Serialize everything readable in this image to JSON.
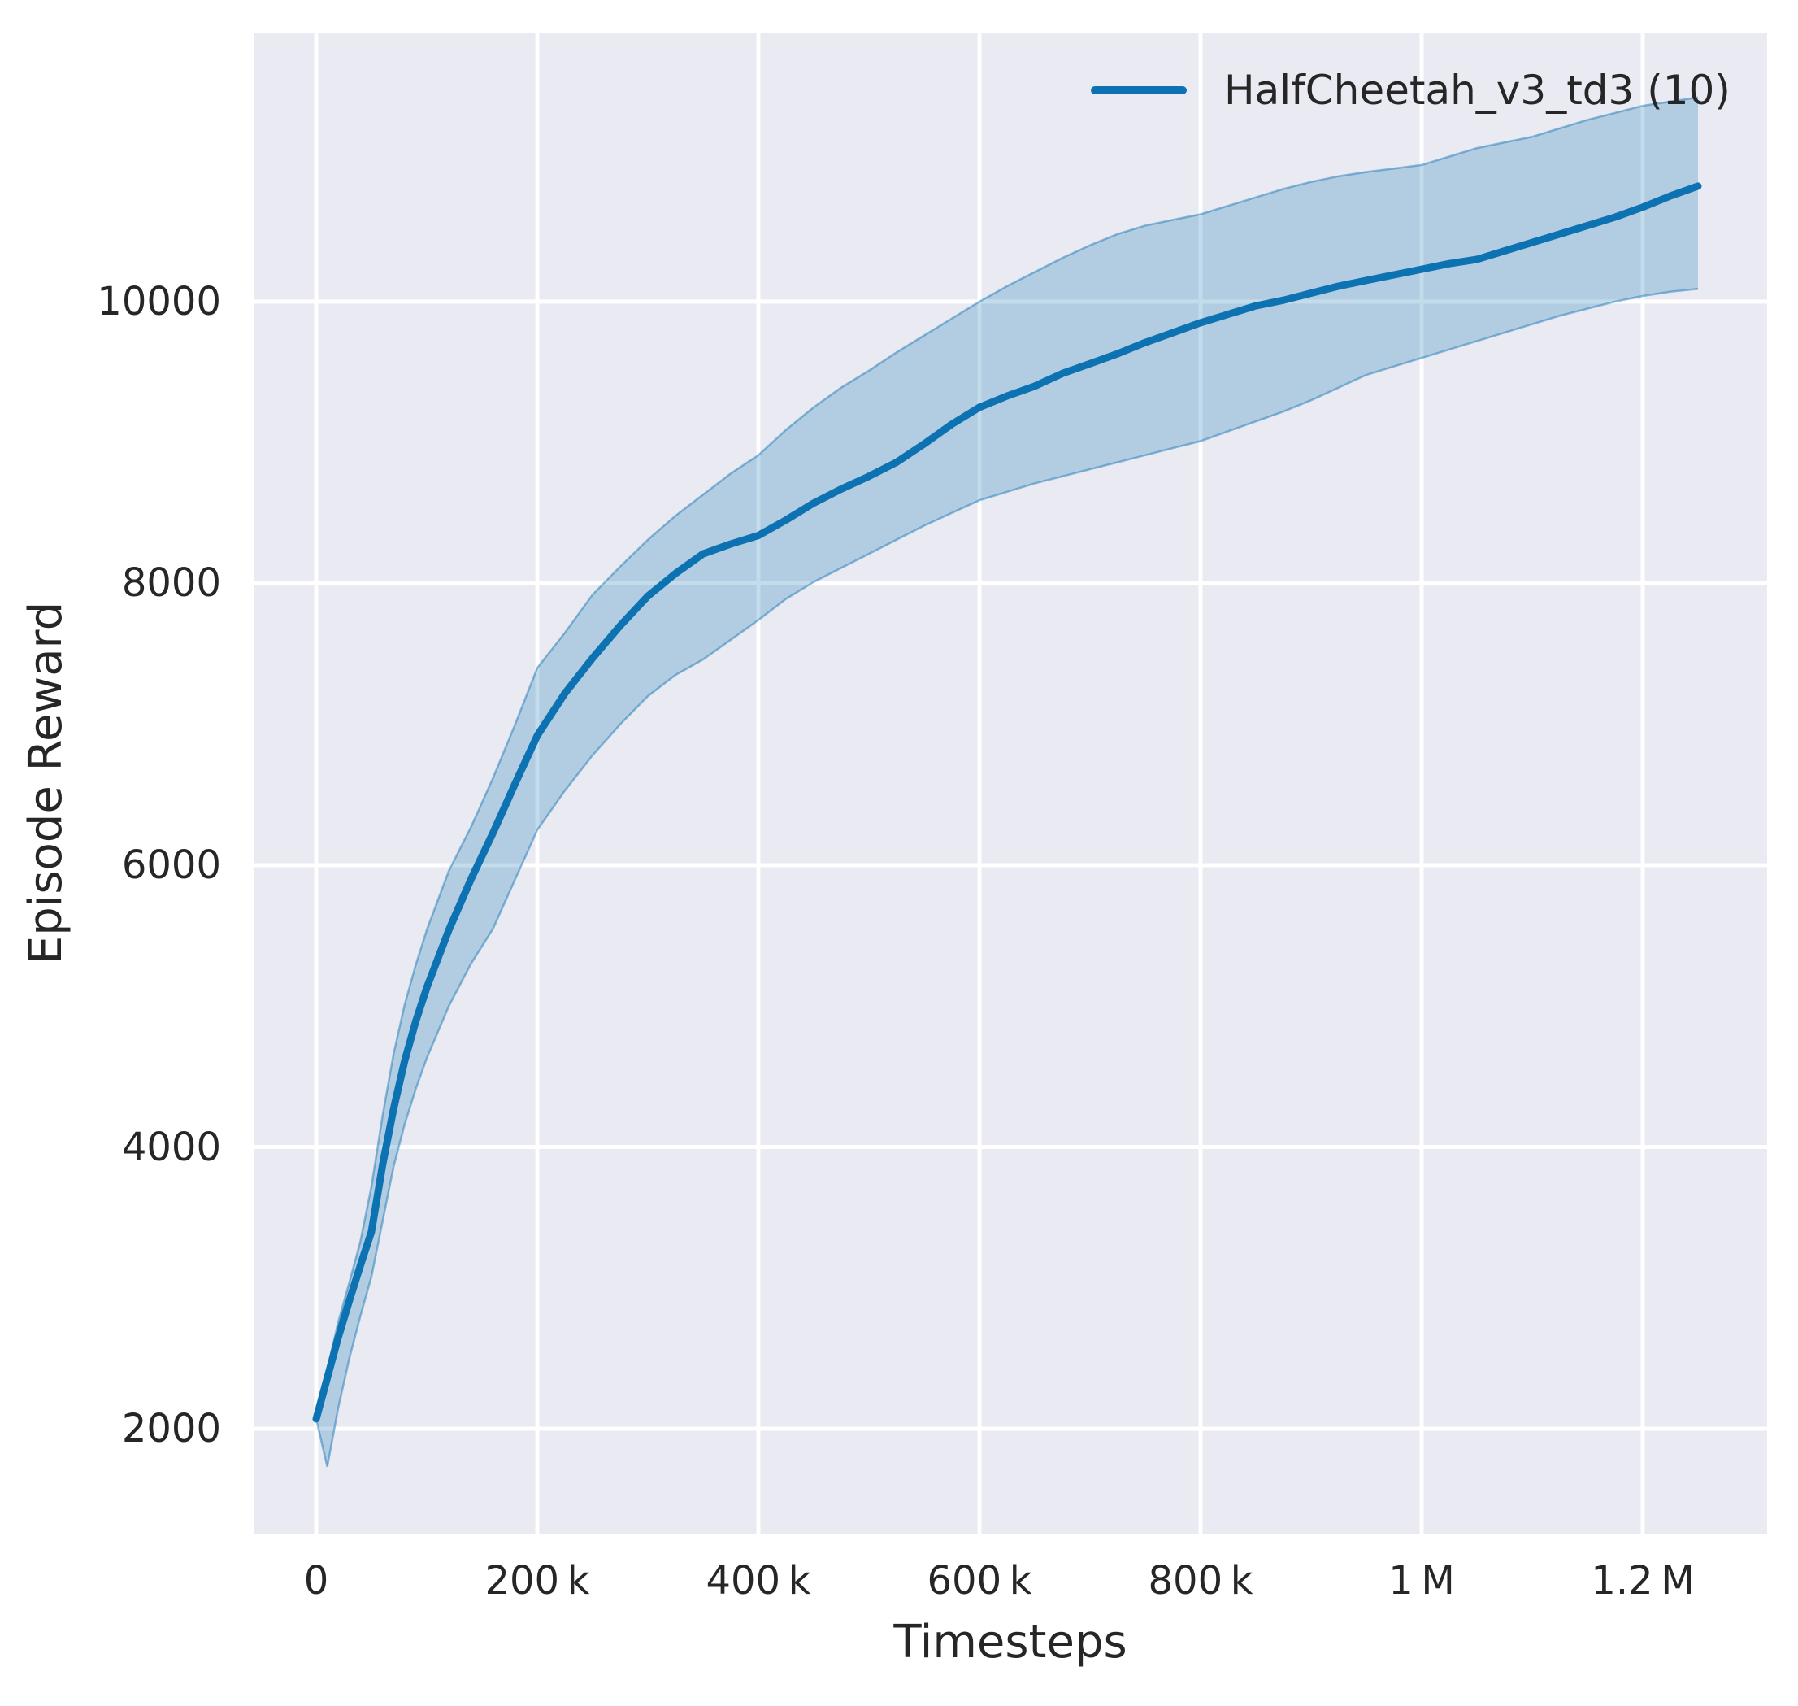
{
  "style": {
    "figure_bg": "#ffffff",
    "plot_bg": "#eaeaf2",
    "grid_color": "#ffffff",
    "text_color": "#262626",
    "line_color": "#0d72b2",
    "band_alpha": 0.25,
    "band_edge_alpha": 0.45
  },
  "chart_data": {
    "type": "line",
    "title": "",
    "xlabel": "Timesteps",
    "ylabel": "Episode Reward",
    "grid": true,
    "legend_position": "upper right",
    "xlim": [
      -56600,
      1312500
    ],
    "ylim": [
      1250,
      11910
    ],
    "x_ticks": [
      {
        "value": 0,
        "label": "0"
      },
      {
        "value": 200000,
        "label": "200 k"
      },
      {
        "value": 400000,
        "label": "400 k"
      },
      {
        "value": 600000,
        "label": "600 k"
      },
      {
        "value": 800000,
        "label": "800 k"
      },
      {
        "value": 1000000,
        "label": "1 M"
      },
      {
        "value": 1200000,
        "label": "1.2 M"
      }
    ],
    "y_ticks": [
      {
        "value": 2000,
        "label": "2000"
      },
      {
        "value": 4000,
        "label": "4000"
      },
      {
        "value": 6000,
        "label": "6000"
      },
      {
        "value": 8000,
        "label": "8000"
      },
      {
        "value": 10000,
        "label": "10000"
      }
    ],
    "series": [
      {
        "name": "HalfCheetah_v3_td3 (10)",
        "color": "#0d72b2",
        "x": [
          0,
          10000,
          20000,
          30000,
          40000,
          50000,
          60000,
          70000,
          80000,
          90000,
          100000,
          120000,
          140000,
          160000,
          180000,
          200000,
          225000,
          250000,
          275000,
          300000,
          325000,
          350000,
          375000,
          400000,
          425000,
          450000,
          475000,
          500000,
          525000,
          550000,
          575000,
          600000,
          625000,
          650000,
          675000,
          700000,
          725000,
          750000,
          775000,
          800000,
          825000,
          850000,
          875000,
          900000,
          925000,
          950000,
          975000,
          1000000,
          1025000,
          1050000,
          1075000,
          1100000,
          1125000,
          1150000,
          1175000,
          1200000,
          1225000,
          1250000
        ],
        "median": [
          2070,
          2360,
          2650,
          2910,
          3160,
          3400,
          3870,
          4270,
          4610,
          4890,
          5130,
          5540,
          5900,
          6230,
          6580,
          6920,
          7220,
          7470,
          7700,
          7910,
          8070,
          8210,
          8280,
          8340,
          8450,
          8570,
          8670,
          8760,
          8860,
          8990,
          9130,
          9250,
          9330,
          9400,
          9490,
          9560,
          9630,
          9710,
          9780,
          9850,
          9910,
          9970,
          10010,
          10060,
          10110,
          10150,
          10190,
          10230,
          10270,
          10300,
          10360,
          10420,
          10480,
          10540,
          10600,
          10670,
          10750,
          10820
        ],
        "band_lower": [
          2070,
          1730,
          2150,
          2500,
          2800,
          3080,
          3470,
          3860,
          4160,
          4410,
          4630,
          5000,
          5300,
          5550,
          5900,
          6250,
          6530,
          6780,
          7000,
          7200,
          7350,
          7460,
          7600,
          7740,
          7890,
          8010,
          8110,
          8210,
          8310,
          8410,
          8500,
          8590,
          8650,
          8710,
          8760,
          8810,
          8860,
          8910,
          8960,
          9010,
          9080,
          9150,
          9220,
          9300,
          9390,
          9480,
          9540,
          9600,
          9660,
          9720,
          9780,
          9840,
          9900,
          9950,
          10000,
          10040,
          10070,
          10090
        ],
        "band_upper": [
          2070,
          2420,
          2760,
          3040,
          3330,
          3720,
          4220,
          4660,
          5010,
          5290,
          5540,
          5960,
          6270,
          6620,
          7000,
          7400,
          7650,
          7920,
          8120,
          8310,
          8480,
          8630,
          8780,
          8910,
          9090,
          9250,
          9390,
          9510,
          9640,
          9760,
          9880,
          10000,
          10110,
          10210,
          10310,
          10400,
          10480,
          10540,
          10580,
          10620,
          10680,
          10740,
          10800,
          10850,
          10890,
          10920,
          10945,
          10970,
          11030,
          11090,
          11130,
          11170,
          11230,
          11290,
          11340,
          11390,
          11420,
          11450
        ]
      }
    ]
  }
}
